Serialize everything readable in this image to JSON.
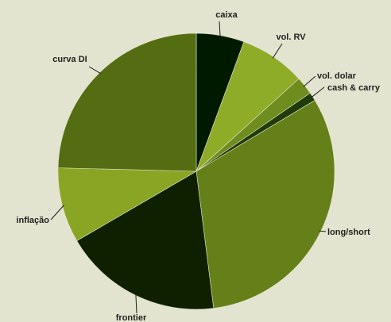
{
  "chart_data": {
    "type": "pie",
    "title": "",
    "slices": [
      {
        "label": "caixa",
        "value": 5.6,
        "color": "#001a00"
      },
      {
        "label": "vol. RV",
        "value": 7.7,
        "color": "#8fac28"
      },
      {
        "label": "vol. dolar",
        "value": 2.1,
        "color": "#6f8c1e"
      },
      {
        "label": "cash & carry",
        "value": 1.0,
        "color": "#203b08"
      },
      {
        "label": "long/short",
        "value": 31.6,
        "color": "#658018"
      },
      {
        "label": "frontier",
        "value": 18.6,
        "color": "#0f2000"
      },
      {
        "label": "inflação",
        "value": 8.8,
        "color": "#8aa523"
      },
      {
        "label": "curva DI",
        "value": 24.6,
        "color": "#556d12"
      }
    ],
    "background": "#e3e4cf",
    "legend": "none",
    "start_angle_deg": 0,
    "direction": "clockwise"
  }
}
